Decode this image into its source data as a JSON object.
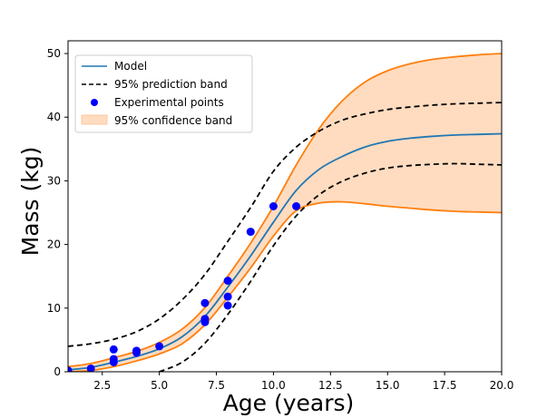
{
  "chart_data": {
    "type": "line",
    "xlabel": "Age (years)",
    "ylabel": "Mass (kg)",
    "xlim": [
      1,
      20
    ],
    "ylim": [
      0,
      52
    ],
    "xticks": [
      2.5,
      5.0,
      7.5,
      10.0,
      12.5,
      15.0,
      17.5,
      20.0
    ],
    "xtick_labels": [
      "2.5",
      "5.0",
      "7.5",
      "10.0",
      "12.5",
      "15.0",
      "17.5",
      "20.0"
    ],
    "yticks": [
      0,
      10,
      20,
      30,
      40,
      50
    ],
    "ytick_labels": [
      "0",
      "10",
      "20",
      "30",
      "40",
      "50"
    ],
    "legend_position": "top-left",
    "legend": [
      {
        "label": "Model",
        "kind": "line",
        "color": "#1f77b4"
      },
      {
        "label": "95% prediction band",
        "kind": "dashed",
        "color": "#000000"
      },
      {
        "label": "Experimental points",
        "kind": "marker",
        "color": "#0000ff"
      },
      {
        "label": "95% confidence band",
        "kind": "patch",
        "color": "#ffdcc0",
        "edge": "#ff7f0e"
      }
    ],
    "model": {
      "color": "#1f77b4",
      "x": [
        1,
        2,
        3,
        4,
        5,
        6,
        7,
        8,
        9,
        10,
        11,
        12,
        13,
        14,
        15,
        16,
        17,
        18,
        19,
        20
      ],
      "y": [
        0.3,
        0.7,
        1.5,
        2.4,
        3.6,
        5.5,
        8.7,
        13.3,
        18.2,
        23.5,
        28.5,
        31.8,
        33.8,
        35.3,
        36.2,
        36.7,
        37.0,
        37.2,
        37.3,
        37.4
      ]
    },
    "prediction_band": {
      "color": "#000000",
      "upper": {
        "x": [
          1,
          2,
          3,
          4,
          5,
          6,
          7,
          8,
          9,
          10,
          11,
          12,
          13,
          14,
          15,
          16,
          17,
          18,
          19,
          20
        ],
        "y": [
          4.0,
          4.4,
          5.1,
          6.3,
          8.3,
          11.3,
          15.3,
          20.5,
          25.8,
          31.5,
          35.3,
          37.8,
          39.5,
          40.5,
          41.2,
          41.6,
          41.9,
          42.1,
          42.2,
          42.3
        ]
      },
      "lower": {
        "x": [
          5,
          6,
          7,
          8,
          9,
          10,
          11,
          12,
          13,
          14,
          15,
          16,
          17,
          18,
          19,
          20
        ],
        "y": [
          0,
          1.5,
          4.5,
          9.0,
          14.2,
          19.8,
          24.5,
          27.8,
          29.9,
          31.2,
          32.0,
          32.4,
          32.6,
          32.7,
          32.6,
          32.5
        ]
      }
    },
    "confidence_band": {
      "fill": "#ffdcc0",
      "edge": "#ff7f0e",
      "upper": {
        "x": [
          1,
          2,
          3,
          4,
          5,
          6,
          7,
          8,
          9,
          10,
          11,
          12,
          13,
          14,
          15,
          16,
          17,
          18,
          19,
          20
        ],
        "y": [
          0.8,
          1.3,
          2.2,
          3.2,
          4.6,
          6.7,
          10.1,
          15.0,
          20.2,
          26.0,
          32.5,
          38.2,
          42.5,
          45.5,
          47.3,
          48.4,
          49.1,
          49.5,
          49.8,
          50.0
        ]
      },
      "lower": {
        "x": [
          1,
          2,
          3,
          4,
          5,
          6,
          7,
          8,
          9,
          10,
          11,
          12,
          13,
          14,
          15,
          16,
          17,
          18,
          19,
          20
        ],
        "y": [
          0.0,
          0.2,
          0.8,
          1.7,
          2.8,
          4.4,
          7.4,
          11.7,
          16.3,
          21.3,
          25.3,
          26.5,
          26.7,
          26.4,
          26.0,
          25.7,
          25.4,
          25.2,
          25.1,
          25.0
        ]
      }
    },
    "experimental_points": {
      "color": "#0000ff",
      "x": [
        1,
        2,
        3,
        3,
        3,
        4,
        4,
        5,
        7,
        7,
        7,
        8,
        8,
        8,
        9,
        10,
        11
      ],
      "y": [
        0.2,
        0.5,
        1.5,
        2.0,
        3.5,
        3.0,
        3.3,
        4.0,
        10.8,
        8.3,
        7.8,
        14.3,
        11.8,
        10.4,
        22.0,
        26.0,
        26.0
      ]
    }
  }
}
